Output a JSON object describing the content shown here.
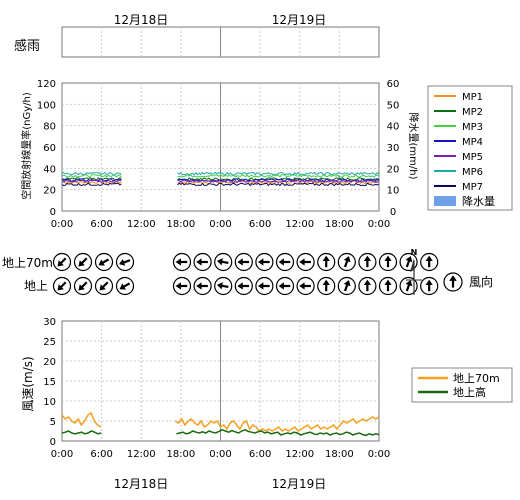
{
  "dates": [
    "12月18日",
    "12月19日"
  ],
  "rain_panel": {
    "label": "感雨"
  },
  "x_ticks": [
    "0:00",
    "6:00",
    "12:00",
    "18:00",
    "0:00",
    "6:00",
    "12:00",
    "18:00",
    "0:00"
  ],
  "colors": {
    "MP1": "#f0901e",
    "MP2": "#0a6e0a",
    "MP3": "#3ed23e",
    "MP4": "#1414c8",
    "MP5": "#7a1fb4",
    "MP6": "#20a8a8",
    "MP7": "#0a0a5a",
    "rain": "#6fa0e8",
    "wind70": "#f5a020",
    "windG": "#1a6a10"
  },
  "chart_data": [
    {
      "type": "line",
      "ylabel": "空間放射線量率(nGy/h)",
      "y2label": "降水量(mm/h)",
      "ylim": [
        0,
        120
      ],
      "y2lim": [
        0,
        60
      ],
      "yticks": [
        "0",
        "20",
        "40",
        "60",
        "80",
        "100",
        "120"
      ],
      "y2ticks": [
        "0",
        "10",
        "20",
        "30",
        "40",
        "50",
        "60"
      ],
      "x_range_hours": [
        0,
        48
      ],
      "gap_hours": [
        9,
        17.5
      ],
      "grid": true,
      "legend_position": "right",
      "series": [
        {
          "name": "MP1",
          "base": 27
        },
        {
          "name": "MP2",
          "base": 30
        },
        {
          "name": "MP3",
          "base": 33
        },
        {
          "name": "MP4",
          "base": 29
        },
        {
          "name": "MP5",
          "base": 28
        },
        {
          "name": "MP6",
          "base": 35
        },
        {
          "name": "MP7",
          "base": 25
        }
      ],
      "rain_series": {
        "name": "降水量",
        "values": []
      }
    },
    {
      "type": "wind-direction",
      "rows": [
        {
          "name": "地上70m",
          "first_day": [
            225,
            225,
            240,
            250
          ],
          "second_day": [
            270,
            270,
            280,
            270,
            270,
            270,
            270,
            0,
            20,
            0,
            0,
            20,
            0
          ]
        },
        {
          "name": "地上",
          "first_day": [
            225,
            225,
            225,
            240
          ],
          "second_day": [
            270,
            270,
            280,
            270,
            270,
            270,
            270,
            0,
            20,
            0,
            0,
            20,
            0
          ]
        }
      ],
      "legend_label": "風向",
      "north_label": "N"
    },
    {
      "type": "line",
      "ylabel": "風速(m/s)",
      "ylim": [
        0,
        30
      ],
      "yticks": [
        "0",
        "5",
        "10",
        "15",
        "20",
        "25",
        "30"
      ],
      "x_range_hours": [
        0,
        48
      ],
      "gap_hours": [
        9,
        17.5
      ],
      "grid": true,
      "legend_position": "right",
      "series": [
        {
          "name": "地上70m",
          "values": [
            6.5,
            5.5,
            6,
            5,
            4.5,
            5.5,
            4,
            5,
            6.5,
            7,
            5,
            4,
            3.5,
            null,
            null,
            null,
            null,
            null,
            null,
            null,
            null,
            null,
            null,
            null,
            null,
            null,
            null,
            null,
            null,
            null,
            null,
            null,
            null,
            null,
            null,
            5,
            4.5,
            5.5,
            4,
            5,
            5.5,
            4.5,
            4,
            5,
            3.5,
            4,
            5,
            4.5,
            5,
            3.5,
            4,
            3,
            4.5,
            5,
            4,
            3,
            4.5,
            5,
            3,
            4,
            3.5,
            2.5,
            3,
            2.5,
            3,
            2.5,
            3,
            3.5,
            2.5,
            3,
            2.5,
            3,
            3.5,
            2.5,
            3,
            3.5,
            4,
            3,
            3.5,
            4,
            3,
            3.5,
            3,
            3.5,
            4,
            3,
            4,
            5,
            4.5,
            5,
            5.5,
            4.5,
            5,
            5.5,
            5,
            5.5,
            6,
            5.5,
            6
          ]
        },
        {
          "name": "地上高",
          "values": [
            2,
            2.2,
            2.5,
            2,
            1.8,
            2,
            2.2,
            1.8,
            2,
            2.5,
            2.2,
            1.8,
            2,
            null,
            null,
            null,
            null,
            null,
            null,
            null,
            null,
            null,
            null,
            null,
            null,
            null,
            null,
            null,
            null,
            null,
            null,
            null,
            null,
            null,
            null,
            1.8,
            2,
            2.2,
            1.8,
            2,
            2.5,
            2.2,
            2,
            2.3,
            2,
            2.5,
            2.2,
            2,
            2.4,
            2.8,
            2.5,
            2.2,
            2.6,
            2.3,
            2,
            2.5,
            2.8,
            2.4,
            2.2,
            2,
            2.3,
            2.5,
            2,
            2.2,
            1.8,
            2,
            2.2,
            1.5,
            1.8,
            2,
            1.8,
            2.2,
            2,
            1.5,
            1.8,
            2,
            2.2,
            1.8,
            1.6,
            2,
            1.8,
            2,
            1.5,
            1.8,
            2,
            1.6,
            1.8,
            2.2,
            2,
            1.5,
            1.8,
            2,
            1.6,
            1.4,
            1.8,
            1.5,
            1.8,
            1.6
          ]
        }
      ]
    }
  ]
}
